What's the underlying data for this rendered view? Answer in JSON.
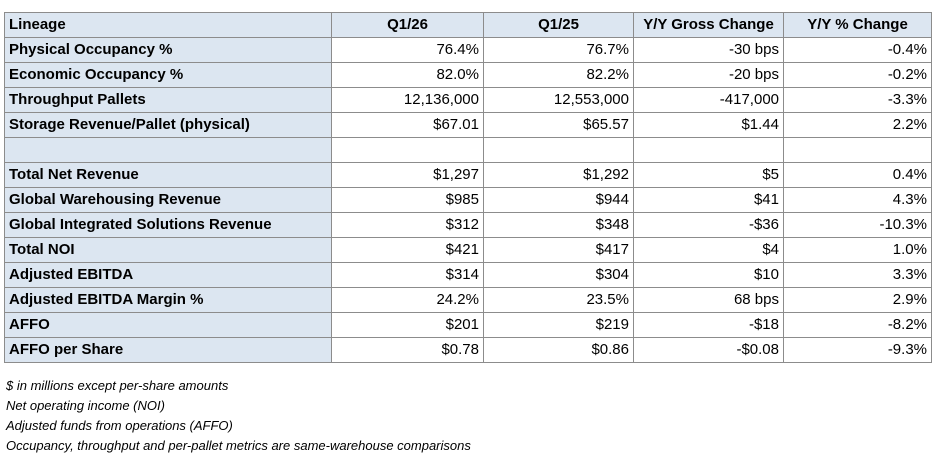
{
  "headers": [
    "Lineage",
    "Q1/26",
    "Q1/25",
    "Y/Y Gross Change",
    "Y/Y % Change"
  ],
  "rows": [
    {
      "label": "Physical Occupancy %",
      "q1_26": "76.4%",
      "q1_25": "76.7%",
      "gross": "-30 bps",
      "pct": "-0.4%"
    },
    {
      "label": "Economic Occupancy %",
      "q1_26": "82.0%",
      "q1_25": "82.2%",
      "gross": "-20 bps",
      "pct": "-0.2%"
    },
    {
      "label": "Throughput Pallets",
      "q1_26": "12,136,000",
      "q1_25": "12,553,000",
      "gross": "-417,000",
      "pct": "-3.3%"
    },
    {
      "label": "Storage Revenue/Pallet (physical)",
      "q1_26": "$67.01",
      "q1_25": "$65.57",
      "gross": "$1.44",
      "pct": "2.2%"
    },
    {
      "label": "",
      "q1_26": "",
      "q1_25": "",
      "gross": "",
      "pct": ""
    },
    {
      "label": "Total Net Revenue",
      "q1_26": "$1,297",
      "q1_25": "$1,292",
      "gross": "$5",
      "pct": "0.4%"
    },
    {
      "label": "Global Warehousing Revenue",
      "q1_26": "$985",
      "q1_25": "$944",
      "gross": "$41",
      "pct": "4.3%"
    },
    {
      "label": "Global Integrated Solutions Revenue",
      "q1_26": "$312",
      "q1_25": "$348",
      "gross": "-$36",
      "pct": "-10.3%"
    },
    {
      "label": "Total NOI",
      "q1_26": "$421",
      "q1_25": "$417",
      "gross": "$4",
      "pct": "1.0%"
    },
    {
      "label": "Adjusted EBITDA",
      "q1_26": "$314",
      "q1_25": "$304",
      "gross": "$10",
      "pct": "3.3%"
    },
    {
      "label": "Adjusted EBITDA Margin %",
      "q1_26": "24.2%",
      "q1_25": "23.5%",
      "gross": "68 bps",
      "pct": "2.9%"
    },
    {
      "label": "AFFO",
      "q1_26": "$201",
      "q1_25": "$219",
      "gross": "-$18",
      "pct": "-8.2%"
    },
    {
      "label": "AFFO per Share",
      "q1_26": "$0.78",
      "q1_25": "$0.86",
      "gross": "-$0.08",
      "pct": "-9.3%"
    }
  ],
  "footnotes": [
    "$ in millions except per-share amounts",
    "Net operating income (NOI)",
    "Adjusted funds from operations (AFFO)",
    "Occupancy, throughput and per-pallet metrics are same-warehouse comparisons"
  ],
  "colors": {
    "header_fill": "#dce6f1",
    "border": "#8c8c8c"
  }
}
